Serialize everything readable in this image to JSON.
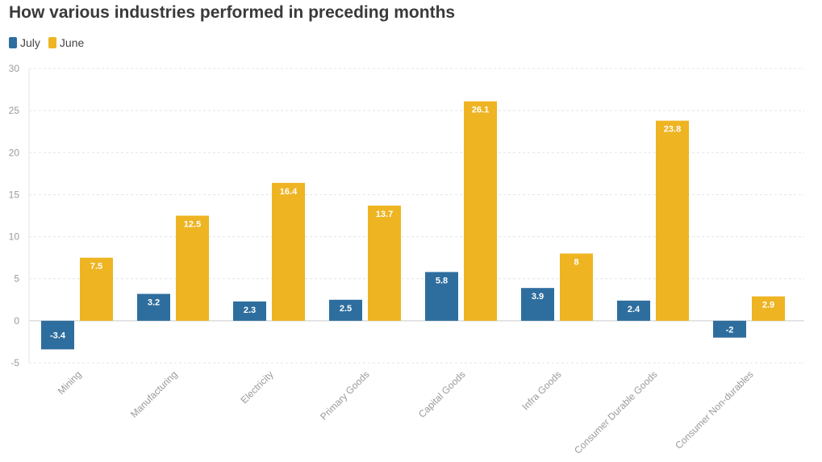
{
  "chart_data": {
    "type": "bar",
    "title": "How various industries performed in preceding months",
    "categories": [
      "Mining",
      "Manufacturing",
      "Electricity",
      "Primary Goods",
      "Capital Goods",
      "Infra Goods",
      "Consumer Durable Goods",
      "Consumer Non-durables"
    ],
    "series": [
      {
        "name": "July",
        "color": "#2e6e9e",
        "values": [
          -3.4,
          3.2,
          2.3,
          2.5,
          5.8,
          3.9,
          2.4,
          -2
        ]
      },
      {
        "name": "June",
        "color": "#eeb422",
        "values": [
          7.5,
          12.5,
          16.4,
          13.7,
          26.1,
          8,
          23.8,
          2.9
        ]
      }
    ],
    "ylim": [
      -5,
      30
    ],
    "yticks": [
      -5,
      0,
      5,
      10,
      15,
      20,
      25,
      30
    ],
    "grid": true,
    "legend_position": "top-left",
    "xlabel": "",
    "ylabel": ""
  }
}
